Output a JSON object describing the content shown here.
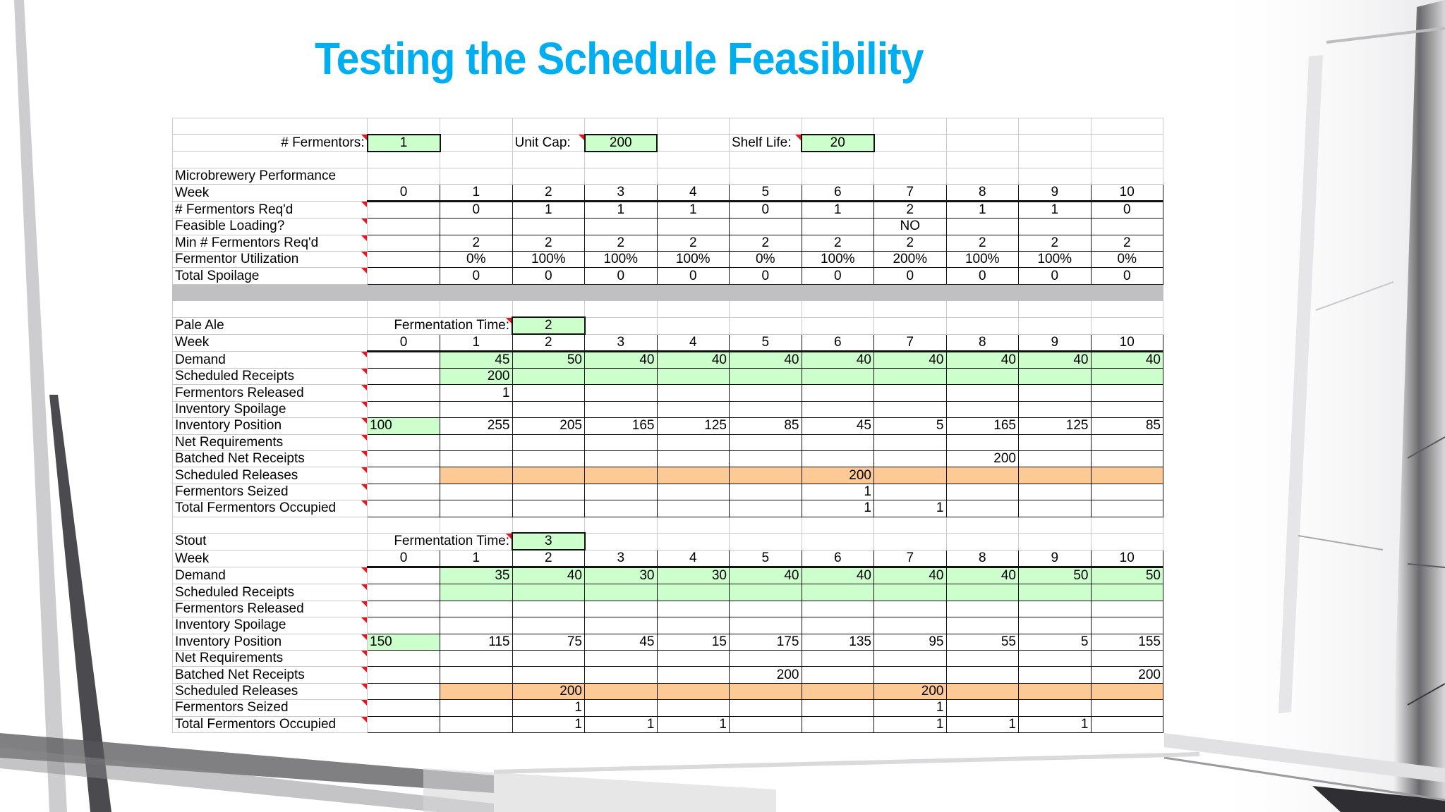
{
  "slide": {
    "title": "Testing the Schedule Feasibility",
    "title_color": "#00AEEF"
  },
  "parameters": {
    "fermentors_label": "# Fermentors:",
    "fermentors_value": "1",
    "unit_cap_label": "Unit Cap:",
    "unit_cap_value": "200",
    "shelf_life_label": "Shelf Life:",
    "shelf_life_value": "20"
  },
  "performance": {
    "section_title": "Microbrewery Performance",
    "week_label": "Week",
    "weeks": [
      "0",
      "1",
      "2",
      "3",
      "4",
      "5",
      "6",
      "7",
      "8",
      "9",
      "10"
    ],
    "rows": [
      {
        "label": "# Fermentors Req'd",
        "values": [
          "",
          "0",
          "1",
          "1",
          "1",
          "0",
          "1",
          "2",
          "1",
          "1",
          "0"
        ]
      },
      {
        "label": "Feasible Loading?",
        "values": [
          "",
          "",
          "",
          "",
          "",
          "",
          "",
          "NO",
          "",
          "",
          ""
        ]
      },
      {
        "label": "Min # Fermentors Req'd",
        "values": [
          "",
          "2",
          "2",
          "2",
          "2",
          "2",
          "2",
          "2",
          "2",
          "2",
          "2"
        ]
      },
      {
        "label": "Fermentor Utilization",
        "values": [
          "",
          "0%",
          "100%",
          "100%",
          "100%",
          "0%",
          "100%",
          "200%",
          "100%",
          "100%",
          "0%"
        ]
      },
      {
        "label": "Total Spoilage",
        "values": [
          "",
          "0",
          "0",
          "0",
          "0",
          "0",
          "0",
          "0",
          "0",
          "0",
          "0"
        ]
      }
    ]
  },
  "pale_ale": {
    "section_title": "Pale Ale",
    "fermentation_time_label": "Fermentation Time:",
    "fermentation_time_value": "2",
    "week_label": "Week",
    "weeks": [
      "0",
      "1",
      "2",
      "3",
      "4",
      "5",
      "6",
      "7",
      "8",
      "9",
      "10"
    ],
    "rows": [
      {
        "label": "Demand",
        "values": [
          "",
          "45",
          "50",
          "40",
          "40",
          "40",
          "40",
          "40",
          "40",
          "40",
          "40"
        ]
      },
      {
        "label": "Scheduled Receipts",
        "values": [
          "",
          "200",
          "",
          "",
          "",
          "",
          "",
          "",
          "",
          "",
          ""
        ]
      },
      {
        "label": "Fermentors Released",
        "values": [
          "",
          "1",
          "",
          "",
          "",
          "",
          "",
          "",
          "",
          "",
          ""
        ]
      },
      {
        "label": "Inventory Spoilage",
        "values": [
          "",
          "",
          "",
          "",
          "",
          "",
          "",
          "",
          "",
          "",
          ""
        ]
      },
      {
        "label": "Inventory Position",
        "values": [
          "100",
          "255",
          "205",
          "165",
          "125",
          "85",
          "45",
          "5",
          "165",
          "125",
          "85"
        ]
      },
      {
        "label": "Net Requirements",
        "values": [
          "",
          "",
          "",
          "",
          "",
          "",
          "",
          "",
          "",
          "",
          ""
        ]
      },
      {
        "label": "Batched Net Receipts",
        "values": [
          "",
          "",
          "",
          "",
          "",
          "",
          "",
          "",
          "200",
          "",
          ""
        ]
      },
      {
        "label": "Scheduled Releases",
        "values": [
          "",
          "",
          "",
          "",
          "",
          "",
          "200",
          "",
          "",
          "",
          ""
        ]
      },
      {
        "label": "Fermentors Seized",
        "values": [
          "",
          "",
          "",
          "",
          "",
          "",
          "1",
          "",
          "",
          "",
          ""
        ]
      },
      {
        "label": "Total Fermentors Occupied",
        "values": [
          "",
          "",
          "",
          "",
          "",
          "",
          "1",
          "1",
          "",
          "",
          ""
        ]
      }
    ]
  },
  "stout": {
    "section_title": "Stout",
    "fermentation_time_label": "Fermentation Time:",
    "fermentation_time_value": "3",
    "week_label": "Week",
    "weeks": [
      "0",
      "1",
      "2",
      "3",
      "4",
      "5",
      "6",
      "7",
      "8",
      "9",
      "10"
    ],
    "rows": [
      {
        "label": "Demand",
        "values": [
          "",
          "35",
          "40",
          "30",
          "30",
          "40",
          "40",
          "40",
          "40",
          "50",
          "50"
        ]
      },
      {
        "label": "Scheduled Receipts",
        "values": [
          "",
          "",
          "",
          "",
          "",
          "",
          "",
          "",
          "",
          "",
          ""
        ]
      },
      {
        "label": "Fermentors Released",
        "values": [
          "",
          "",
          "",
          "",
          "",
          "",
          "",
          "",
          "",
          "",
          ""
        ]
      },
      {
        "label": "Inventory Spoilage",
        "values": [
          "",
          "",
          "",
          "",
          "",
          "",
          "",
          "",
          "",
          "",
          ""
        ]
      },
      {
        "label": "Inventory Position",
        "values": [
          "150",
          "115",
          "75",
          "45",
          "15",
          "175",
          "135",
          "95",
          "55",
          "5",
          "155"
        ]
      },
      {
        "label": "Net Requirements",
        "values": [
          "",
          "",
          "",
          "",
          "",
          "",
          "",
          "",
          "",
          "",
          ""
        ]
      },
      {
        "label": "Batched Net Receipts",
        "values": [
          "",
          "",
          "",
          "",
          "",
          "200",
          "",
          "",
          "",
          "",
          "200"
        ]
      },
      {
        "label": "Scheduled Releases",
        "values": [
          "",
          "",
          "200",
          "",
          "",
          "",
          "",
          "200",
          "",
          "",
          ""
        ]
      },
      {
        "label": "Fermentors Seized",
        "values": [
          "",
          "",
          "1",
          "",
          "",
          "",
          "",
          "1",
          "",
          "",
          ""
        ]
      },
      {
        "label": "Total Fermentors Occupied",
        "values": [
          "",
          "",
          "1",
          "1",
          "1",
          "",
          "",
          "1",
          "1",
          "1",
          ""
        ]
      }
    ]
  },
  "colors": {
    "label_blue": "#3b62d9",
    "section_magenta": "#e619d3",
    "input_green": "#ccffcc",
    "release_orange": "#fdca96",
    "infeasible_red": "#e8141f",
    "separator_grey": "#c0c0c2"
  }
}
